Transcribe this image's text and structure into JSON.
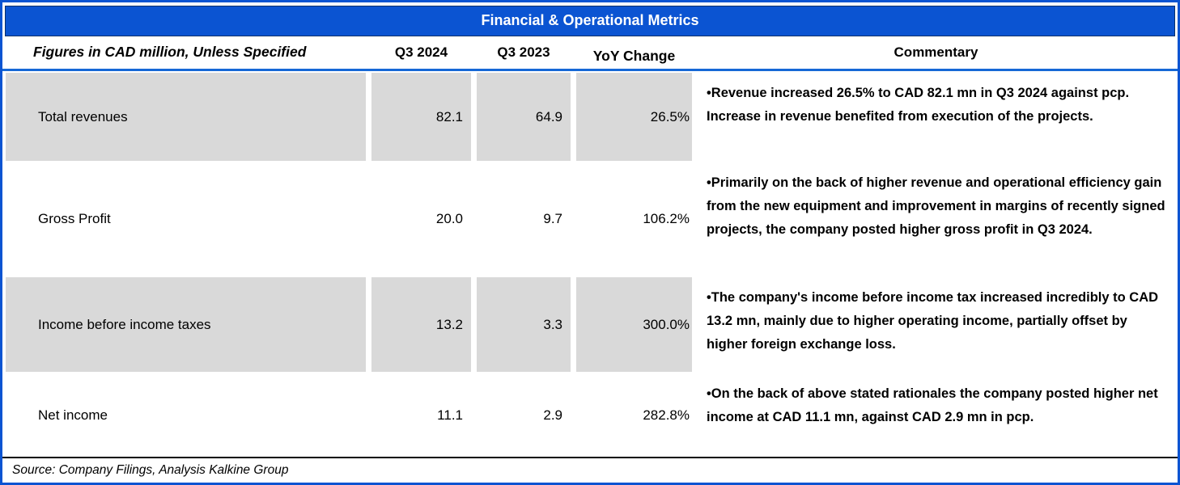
{
  "title": "Financial & Operational Metrics",
  "header": {
    "label": "Figures in CAD million, Unless Specified",
    "col_q3_2024": "Q3 2024",
    "col_q3_2023": "Q3 2023",
    "col_yoy": "YoY Change",
    "col_commentary": "Commentary"
  },
  "rows": [
    {
      "label": "Total revenues",
      "q3_2024": "82.1",
      "q3_2023": "64.9",
      "yoy": "26.5%",
      "commentary": "•Revenue increased 26.5% to CAD 82.1 mn in Q3 2024 against pcp. Increase in revenue benefited from execution of the projects."
    },
    {
      "label": "Gross Profit",
      "q3_2024": "20.0",
      "q3_2023": "9.7",
      "yoy": "106.2%",
      "commentary": "•Primarily on the back of higher revenue and operational efficiency gain from the new equipment and improvement in margins of recently signed projects, the company posted higher gross profit in Q3 2024."
    },
    {
      "label": "Income before income taxes",
      "q3_2024": "13.2",
      "q3_2023": "3.3",
      "yoy": "300.0%",
      "commentary": "•The company's income before income tax increased incredibly to CAD 13.2 mn, mainly due to higher operating income, partially offset by higher foreign exchange loss."
    },
    {
      "label": "Net income",
      "q3_2024": "11.1",
      "q3_2023": "2.9",
      "yoy": "282.8%",
      "commentary": "•On the back of above stated rationales the company posted higher net income at CAD 11.1 mn, against CAD 2.9 mn in pcp."
    }
  ],
  "source": "Source: Company Filings, Analysis Kalkine Group",
  "colors": {
    "accent_blue": "#0B54D2",
    "shaded_gray": "#D9D9D9",
    "text": "#000000",
    "title_text": "#FFFFFF"
  }
}
